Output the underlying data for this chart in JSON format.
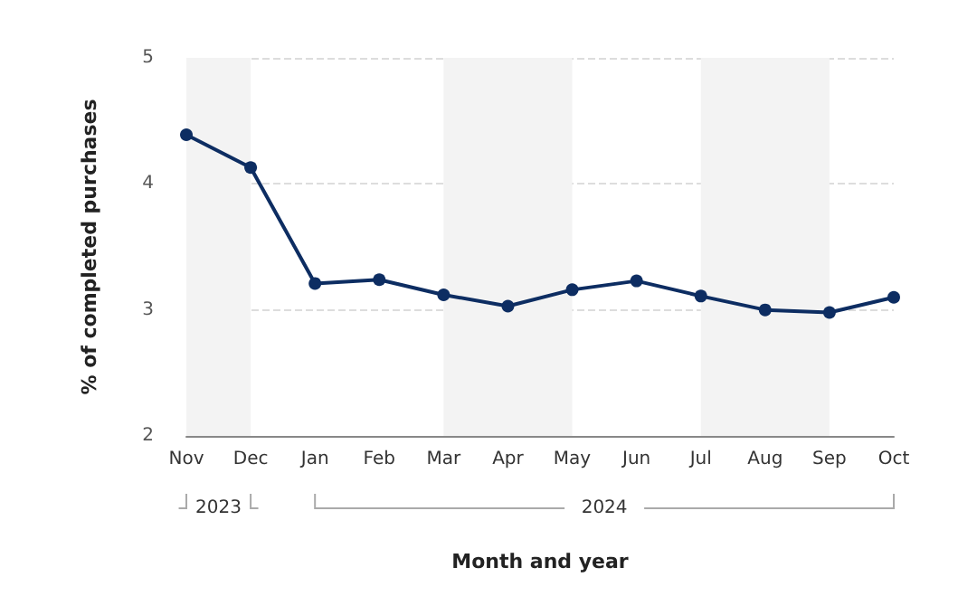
{
  "chart_data": {
    "type": "line",
    "xlabel": "Month and year",
    "ylabel": "% of completed purchases",
    "categories": [
      "Nov",
      "Dec",
      "Jan",
      "Feb",
      "Mar",
      "Apr",
      "May",
      "Jun",
      "Jul",
      "Aug",
      "Sep",
      "Oct"
    ],
    "series": [
      {
        "color": "#0d2d62",
        "values": [
          4.39,
          4.13,
          3.21,
          3.24,
          3.12,
          3.03,
          3.16,
          3.23,
          3.11,
          3.0,
          2.98,
          3.1
        ]
      }
    ],
    "ylim": [
      2,
      5
    ],
    "yticks": [
      2,
      3,
      4,
      5
    ],
    "grid": "y",
    "marker": "circle",
    "line_style": "solid",
    "bands": [
      {
        "axis": "x",
        "from": "Nov",
        "to": "Dec",
        "color": "#f3f3f3"
      },
      {
        "axis": "x",
        "from": "Mar",
        "to": "May",
        "color": "#f3f3f3"
      },
      {
        "axis": "x",
        "from": "Jul",
        "to": "Sep",
        "color": "#f3f3f3"
      }
    ],
    "annotations": [
      "2023",
      "2024"
    ]
  }
}
